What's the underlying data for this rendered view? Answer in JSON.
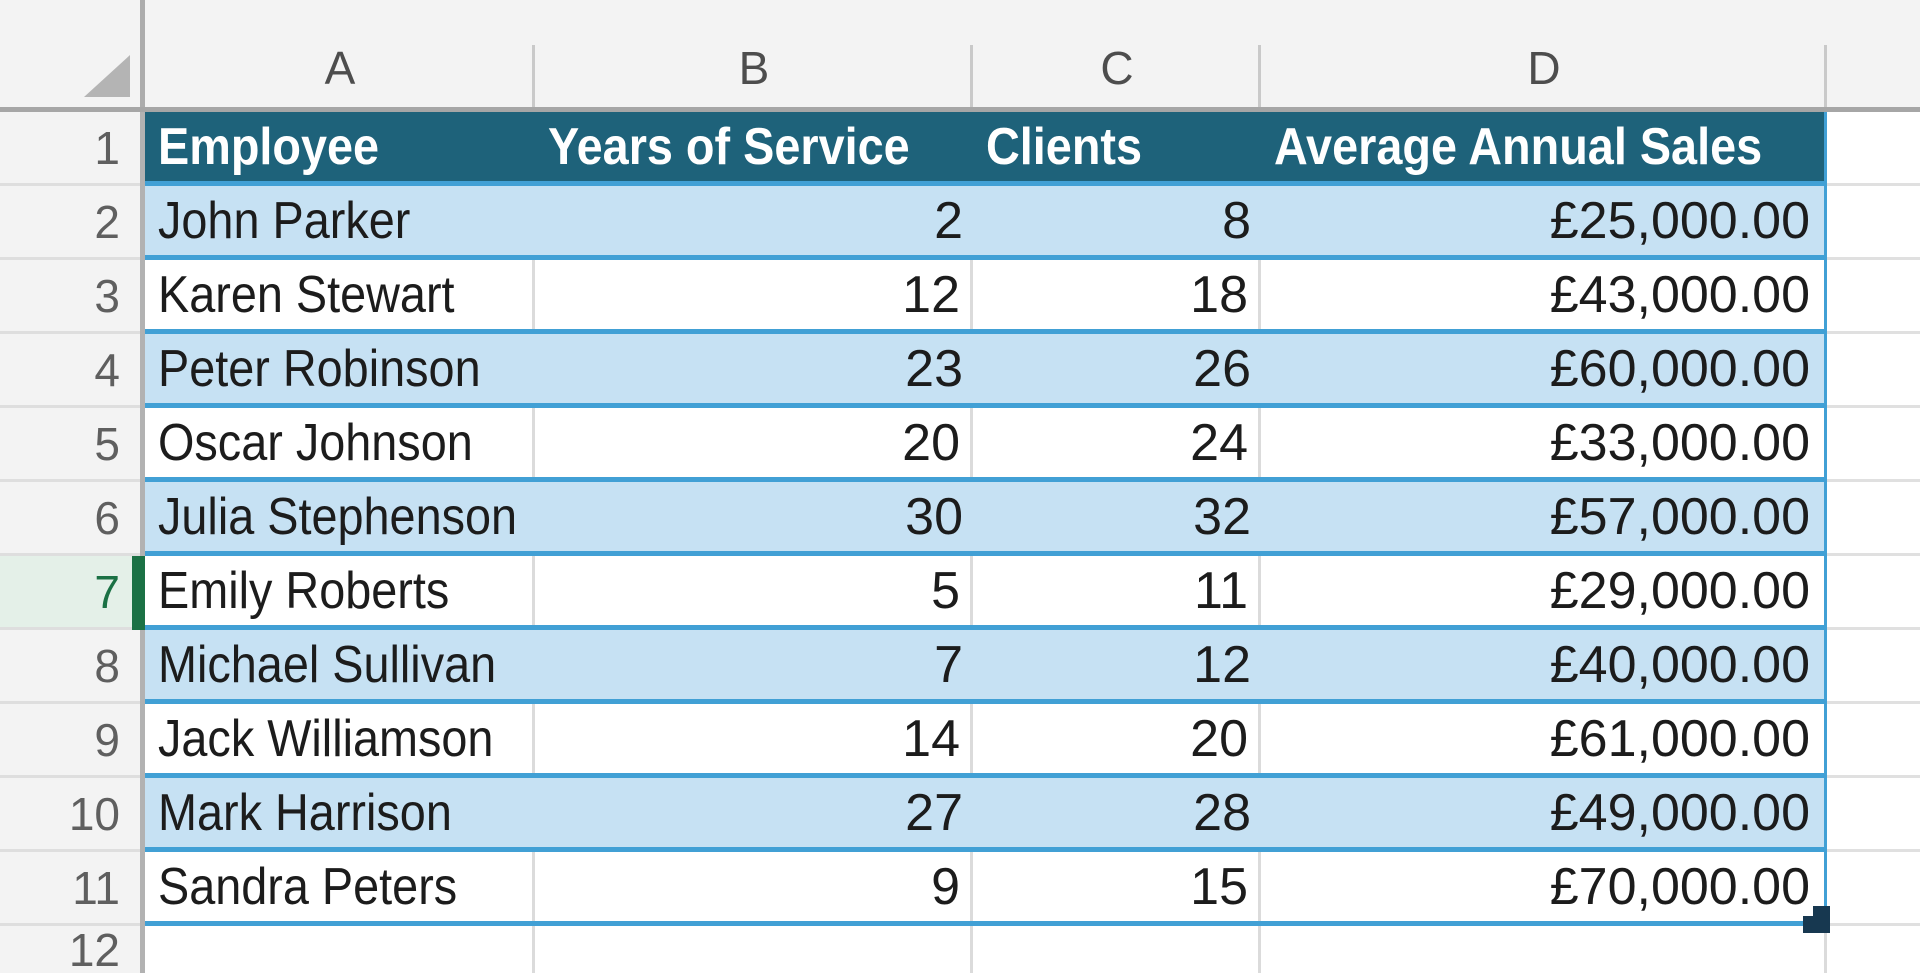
{
  "colors": {
    "table_header_fill": "#1E627A",
    "banded_row_fill": "#C6E1F3",
    "table_border_blue": "#41A0D5",
    "active_row_green": "#1B7145",
    "active_row_green_bg": "#E4F0E8",
    "resize_handle": "#173850",
    "gridline": "#DBDBDB",
    "header_strip_bg": "#F3F3F3"
  },
  "column_strip": {
    "columns": [
      {
        "letter": "A"
      },
      {
        "letter": "B"
      },
      {
        "letter": "C"
      },
      {
        "letter": "D"
      },
      {
        "letter": ""
      }
    ]
  },
  "row_headers": {
    "numbers": [
      "1",
      "2",
      "3",
      "4",
      "5",
      "6",
      "7",
      "8",
      "9",
      "10",
      "11",
      "12"
    ],
    "active_row": "7"
  },
  "table": {
    "range": "A1:D11",
    "headers": [
      "Employee",
      "Years of Service",
      "Clients",
      "Average Annual Sales"
    ],
    "rows": [
      {
        "employee": "John Parker",
        "years": "2",
        "clients": "8",
        "sales": "£25,000.00"
      },
      {
        "employee": "Karen Stewart",
        "years": "12",
        "clients": "18",
        "sales": "£43,000.00"
      },
      {
        "employee": "Peter Robinson",
        "years": "23",
        "clients": "26",
        "sales": "£60,000.00"
      },
      {
        "employee": "Oscar Johnson",
        "years": "20",
        "clients": "24",
        "sales": "£33,000.00"
      },
      {
        "employee": "Julia Stephenson",
        "years": "30",
        "clients": "32",
        "sales": "£57,000.00"
      },
      {
        "employee": "Emily Roberts",
        "years": "5",
        "clients": "11",
        "sales": "£29,000.00"
      },
      {
        "employee": "Michael Sullivan",
        "years": "7",
        "clients": "12",
        "sales": "£40,000.00"
      },
      {
        "employee": "Jack Williamson",
        "years": "14",
        "clients": "20",
        "sales": "£61,000.00"
      },
      {
        "employee": "Mark Harrison",
        "years": "27",
        "clients": "28",
        "sales": "£49,000.00"
      },
      {
        "employee": "Sandra Peters",
        "years": "9",
        "clients": "15",
        "sales": "£70,000.00"
      }
    ]
  }
}
